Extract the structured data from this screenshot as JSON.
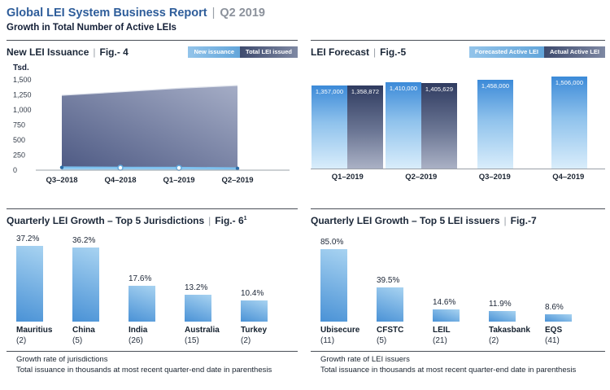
{
  "header": {
    "title": "Global LEI System Business Report",
    "separator": "|",
    "period": "Q2 2019",
    "subtitle": "Growth in Total Number of Active LEIs"
  },
  "ui": {
    "fig_separator": "|"
  },
  "colors": {
    "brand_blue": "#2e5d9a",
    "dark_navy_text": "#131f37",
    "bar_blue": "#4a92d6",
    "bar_blue_light": "#a8d3f1",
    "forecast_top": "#3c8ad8",
    "forecast_bottom": "#d9edfb",
    "actual_top": "#2f3b60",
    "actual_bottom": "#aab1c5",
    "area_dark": "#4d5983",
    "area_light": "#a5adc6",
    "issuance_line": "#7cc0ee"
  },
  "chart_data": [
    {
      "id": "fig4",
      "type": "area",
      "title": "New LEI Issuance",
      "fig": "Fig.- 4",
      "unit_label": "Tsd.",
      "legend": [
        {
          "label": "New issuance",
          "color": "#62a5da"
        },
        {
          "label": "Total LEI issued",
          "color": "#3e4b6e"
        }
      ],
      "x": [
        "Q3–2018",
        "Q4–2018",
        "Q1–2019",
        "Q2–2019"
      ],
      "series": [
        {
          "name": "New issuance",
          "values": [
            45,
            40,
            38,
            30
          ]
        },
        {
          "name": "Total LEI issued",
          "values": [
            1243,
            1300,
            1359,
            1406
          ]
        }
      ],
      "ylabel": "Tsd.",
      "ylim": [
        0,
        1500
      ],
      "yticks": [
        "1,500",
        "1,250",
        "1,000",
        "750",
        "500",
        "250",
        "0"
      ]
    },
    {
      "id": "fig5",
      "type": "bar",
      "title": "LEI Forecast",
      "fig": "Fig.-5",
      "legend": [
        {
          "label": "Forecasted Active LEI",
          "color": "#62a5da"
        },
        {
          "label": "Actual Active LEI",
          "color": "#3e4b6e"
        }
      ],
      "categories": [
        "Q1–2019",
        "Q2–2019",
        "Q3–2019",
        "Q4–2019"
      ],
      "series": [
        {
          "name": "Forecasted Active LEI",
          "values": [
            1357000,
            1410000,
            1458000,
            1506000
          ],
          "labels": [
            "1,357,000",
            "1,410,000",
            "1,458,000",
            "1,506,000"
          ]
        },
        {
          "name": "Actual Active LEI",
          "values": [
            1358872,
            1405629,
            null,
            null
          ],
          "labels": [
            "1,358,872",
            "1,405,629",
            null,
            null
          ]
        }
      ],
      "ylim": [
        0,
        1600000
      ],
      "grid": false,
      "legend_position": "top-right"
    },
    {
      "id": "fig6",
      "type": "bar",
      "title": "Quarterly LEI Growth – Top 5 Jurisdictions",
      "fig": "Fig.- 6",
      "fig_sup": "1",
      "categories": [
        "Mauritius",
        "China",
        "India",
        "Australia",
        "Turkey"
      ],
      "counts": [
        "(2)",
        "(5)",
        "(26)",
        "(15)",
        "(2)"
      ],
      "values": [
        37.2,
        36.2,
        17.6,
        13.2,
        10.4
      ],
      "value_labels": [
        "37.2%",
        "36.2%",
        "17.6%",
        "13.2%",
        "10.4%"
      ],
      "ylim": [
        0,
        40
      ],
      "footnotes": [
        "Growth rate of jurisdictions",
        "Total issuance in thousands at most recent quarter-end date in parenthesis"
      ]
    },
    {
      "id": "fig7",
      "type": "bar",
      "title": "Quarterly LEI Growth – Top 5 LEI issuers",
      "fig": "Fig.-7",
      "categories": [
        "Ubisecure",
        "CFSTC",
        "LEIL",
        "Takasbank",
        "EQS"
      ],
      "counts": [
        "(11)",
        "(5)",
        "(21)",
        "(2)",
        "(41)"
      ],
      "values": [
        85.0,
        39.5,
        14.6,
        11.9,
        8.6
      ],
      "value_labels": [
        "85.0%",
        "39.5%",
        "14.6%",
        "11.9%",
        "8.6%"
      ],
      "ylim": [
        0,
        95
      ],
      "footnotes": [
        "Growth rate of LEI issuers",
        "Total issuance in thousands at most recent quarter-end date in parenthesis"
      ]
    }
  ]
}
